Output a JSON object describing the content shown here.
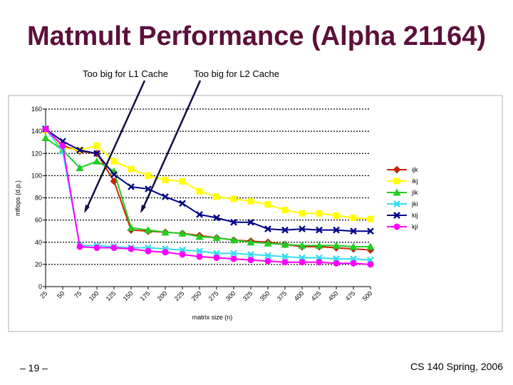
{
  "slide": {
    "title": "Matmult Performance (Alpha 21164)",
    "annotation_l1": "Too big for L1 Cache",
    "annotation_l2": "Too big for L2 Cache",
    "page_number": "– 19 –",
    "course": "CS 140 Spring, 2006"
  },
  "chart_data": {
    "type": "line",
    "title": "",
    "xlabel": "matrix size (n)",
    "ylabel": "mflops (d.p.)",
    "ylim": [
      0,
      160
    ],
    "yticks": [
      0,
      20,
      40,
      60,
      80,
      100,
      120,
      140,
      160
    ],
    "categories": [
      "25",
      "50",
      "75",
      "100",
      "125",
      "150",
      "175",
      "200",
      "225",
      "250",
      "275",
      "300",
      "325",
      "350",
      "375",
      "400",
      "425",
      "450",
      "475",
      "500"
    ],
    "grid": true,
    "legend_position": "right",
    "series": [
      {
        "name": "ijk",
        "color": "#cc2200",
        "marker": "diamond",
        "values": [
          142,
          127,
          122,
          120,
          95,
          51,
          50,
          49,
          48,
          46,
          44,
          42,
          41,
          40,
          38,
          36,
          36,
          35,
          34,
          33
        ]
      },
      {
        "name": "ikj",
        "color": "#ffff00",
        "marker": "square",
        "values": [
          141,
          125,
          123,
          127,
          113,
          106,
          100,
          96,
          95,
          86,
          81,
          79,
          77,
          74,
          69,
          66,
          66,
          64,
          62,
          61
        ]
      },
      {
        "name": "jik",
        "color": "#22cc22",
        "marker": "triangle",
        "values": [
          134,
          123,
          107,
          113,
          104,
          53,
          51,
          49,
          48,
          45,
          44,
          42,
          40,
          39,
          38,
          37,
          37,
          37,
          36,
          36
        ]
      },
      {
        "name": "jki",
        "color": "#33ddee",
        "marker": "x",
        "values": [
          142,
          122,
          37,
          37,
          36,
          35,
          35,
          34,
          33,
          32,
          30,
          30,
          29,
          28,
          27,
          26,
          26,
          25,
          25,
          24
        ]
      },
      {
        "name": "kij",
        "color": "#000088",
        "marker": "x",
        "values": [
          142,
          131,
          123,
          120,
          101,
          90,
          88,
          81,
          75,
          65,
          62,
          58,
          58,
          52,
          51,
          52,
          51,
          51,
          50,
          50
        ]
      },
      {
        "name": "kji",
        "color": "#ff00ff",
        "marker": "circle",
        "values": [
          142,
          127,
          36,
          35,
          35,
          34,
          32,
          31,
          29,
          27,
          26,
          25,
          24,
          23,
          22,
          22,
          22,
          21,
          21,
          20
        ]
      }
    ]
  }
}
